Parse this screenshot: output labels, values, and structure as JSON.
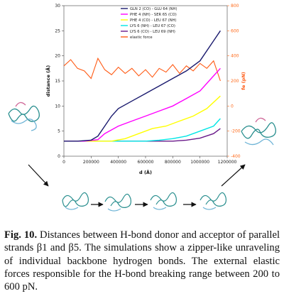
{
  "chart_data": {
    "type": "line",
    "xlabel": "d (Å)",
    "ylabel": "distance (Å)",
    "y2label": "fe (pN)",
    "xlim": [
      0,
      1200000
    ],
    "ylim": [
      0,
      30
    ],
    "y2lim": [
      -400,
      800
    ],
    "x_ticks": [
      "0",
      "200000",
      "400000",
      "600000",
      "800000",
      "1000000",
      "1200000"
    ],
    "y_ticks": [
      "0",
      "5",
      "10",
      "15",
      "20",
      "25",
      "30"
    ],
    "y2_ticks": [
      "-400",
      "-200",
      "0",
      "200",
      "400",
      "600",
      "800"
    ],
    "series": [
      {
        "name": "GLN 2 (CO) - GLU 64 (NH)",
        "color": "#1a1a6e",
        "points": [
          [
            0,
            3
          ],
          [
            100000,
            3
          ],
          [
            200000,
            3.2
          ],
          [
            250000,
            4
          ],
          [
            300000,
            6
          ],
          [
            350000,
            8
          ],
          [
            400000,
            9.5
          ],
          [
            500000,
            11
          ],
          [
            600000,
            12.5
          ],
          [
            700000,
            14
          ],
          [
            800000,
            15.5
          ],
          [
            900000,
            17
          ],
          [
            1000000,
            19
          ],
          [
            1100000,
            23
          ],
          [
            1150000,
            25
          ]
        ]
      },
      {
        "name": "PHE 4 (NH) - SER 65 (CO)",
        "color": "#ff00ff",
        "points": [
          [
            0,
            3
          ],
          [
            150000,
            3
          ],
          [
            250000,
            3.3
          ],
          [
            300000,
            4.5
          ],
          [
            400000,
            6
          ],
          [
            500000,
            7
          ],
          [
            600000,
            8
          ],
          [
            700000,
            9
          ],
          [
            800000,
            10
          ],
          [
            900000,
            11.5
          ],
          [
            1000000,
            13
          ],
          [
            1100000,
            16
          ],
          [
            1150000,
            17.5
          ]
        ]
      },
      {
        "name": "PHE 4 (CO) - LEU 67 (NH)",
        "color": "#ffff00",
        "points": [
          [
            0,
            3
          ],
          [
            350000,
            3
          ],
          [
            450000,
            3.5
          ],
          [
            550000,
            4.5
          ],
          [
            650000,
            5.5
          ],
          [
            750000,
            6
          ],
          [
            850000,
            7
          ],
          [
            950000,
            8
          ],
          [
            1050000,
            9.5
          ],
          [
            1150000,
            12
          ]
        ]
      },
      {
        "name": "LYS 6 (NH) - LEU 67 (CO)",
        "color": "#00e5e5",
        "points": [
          [
            0,
            3
          ],
          [
            600000,
            3
          ],
          [
            700000,
            3.2
          ],
          [
            800000,
            3.5
          ],
          [
            900000,
            4
          ],
          [
            1000000,
            5
          ],
          [
            1100000,
            6
          ],
          [
            1150000,
            7.5
          ]
        ]
      },
      {
        "name": "LYS 6 (CO) - LEU 69 (NH)",
        "color": "#6a1a8a",
        "points": [
          [
            0,
            3
          ],
          [
            800000,
            3
          ],
          [
            900000,
            3.2
          ],
          [
            1000000,
            3.6
          ],
          [
            1100000,
            4.5
          ],
          [
            1150000,
            5.5
          ]
        ]
      },
      {
        "name": "elastic force",
        "color": "#ff5a14",
        "axis": "right",
        "points": [
          [
            0,
            320
          ],
          [
            50000,
            370
          ],
          [
            100000,
            300
          ],
          [
            150000,
            280
          ],
          [
            200000,
            220
          ],
          [
            250000,
            380
          ],
          [
            300000,
            290
          ],
          [
            350000,
            250
          ],
          [
            400000,
            310
          ],
          [
            450000,
            260
          ],
          [
            500000,
            300
          ],
          [
            550000,
            240
          ],
          [
            600000,
            290
          ],
          [
            650000,
            230
          ],
          [
            700000,
            300
          ],
          [
            750000,
            270
          ],
          [
            800000,
            330
          ],
          [
            850000,
            260
          ],
          [
            900000,
            320
          ],
          [
            950000,
            280
          ],
          [
            1000000,
            340
          ],
          [
            1050000,
            300
          ],
          [
            1100000,
            360
          ],
          [
            1150000,
            200
          ]
        ]
      }
    ],
    "legend_position": "top-center"
  },
  "caption": {
    "label": "Fig. 10.",
    "text": " Distances between H-bond donor and acceptor of parallel strands β1 and β5. The simulations show a zipper-like unraveling of individual backbone hydrogen bonds. The external elastic forces responsible for the H-bond breaking range between 200 to 600 pN."
  }
}
